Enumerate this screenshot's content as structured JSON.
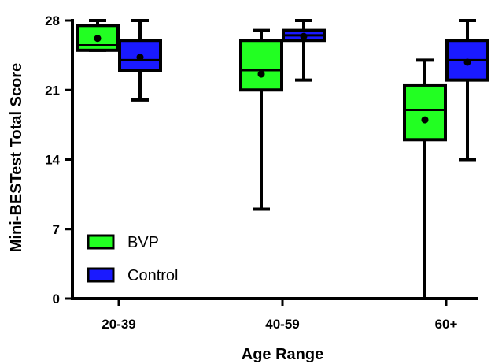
{
  "chart_data": {
    "type": "box",
    "title": "",
    "xlabel": "Age Range",
    "ylabel": "Mini-BESTest Total Score",
    "ylim": [
      0,
      28
    ],
    "yticks": [
      0,
      7,
      14,
      21,
      28
    ],
    "categories": [
      "20-39",
      "40-59",
      "60+"
    ],
    "grid": false,
    "legend_position": "bottom-left",
    "series": [
      {
        "name": "BVP",
        "color": "#22ff22",
        "boxes": [
          {
            "min": 25,
            "q1": 25,
            "median": 25.5,
            "q3": 27.5,
            "max": 28,
            "mean": 26.2
          },
          {
            "min": 9,
            "q1": 21,
            "median": 23,
            "q3": 26,
            "max": 27,
            "mean": 22.6
          },
          {
            "min": 0,
            "q1": 16,
            "median": 19,
            "q3": 21.5,
            "max": 24,
            "mean": 18
          }
        ]
      },
      {
        "name": "Control",
        "color": "#1a1aff",
        "boxes": [
          {
            "min": 20,
            "q1": 23,
            "median": 24,
            "q3": 26,
            "max": 28,
            "mean": 24.3
          },
          {
            "min": 22,
            "q1": 26,
            "median": 26.5,
            "q3": 27,
            "max": 28,
            "mean": 26.4
          },
          {
            "min": 14,
            "q1": 22,
            "median": 24,
            "q3": 26,
            "max": 28,
            "mean": 23.8
          }
        ]
      }
    ]
  }
}
